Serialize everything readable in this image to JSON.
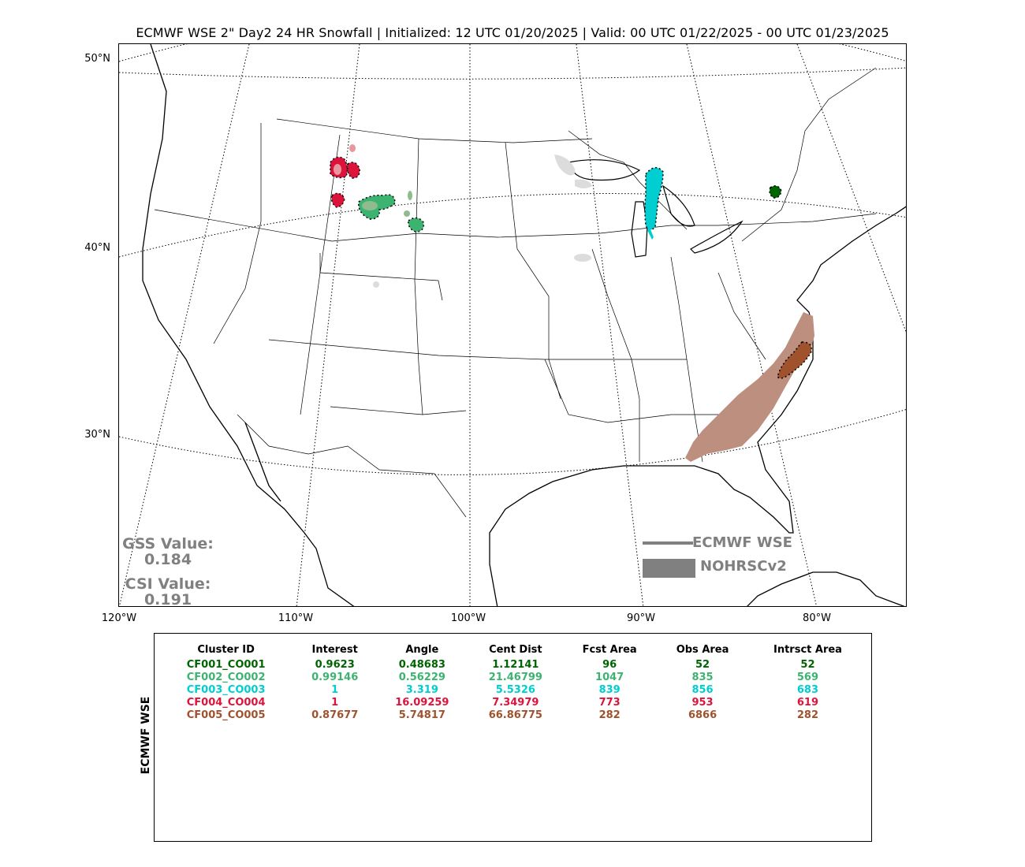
{
  "title": "ECMWF WSE 2\" Day2 24 HR Snowfall | Initialized: 12 UTC 01/20/2025 | Valid: 00 UTC 01/22/2025 - 00 UTC 01/23/2025",
  "lat_labels": [
    "50°N",
    "40°N",
    "30°N"
  ],
  "lon_labels": [
    "120°W",
    "110°W",
    "100°W",
    "90°W",
    "80°W"
  ],
  "stats": {
    "gss_label": "GSS Value:",
    "gss_value": "0.184",
    "csi_label": "CSI Value:",
    "csi_value": "0.191"
  },
  "legend": {
    "forecast_label": "ECMWF WSE",
    "observed_label": "NOHRSCv2",
    "color": "#808080"
  },
  "table": {
    "side_label": "ECMWF WSE",
    "headers": [
      "Cluster ID",
      "Interest",
      "Angle",
      "Cent Dist",
      "Fcst Area",
      "Obs Area",
      "Intrsct Area"
    ],
    "rows": [
      {
        "color": "#006400",
        "cells": [
          "CF001_CO001",
          "0.9623",
          "0.48683",
          "1.12141",
          "96",
          "52",
          "52"
        ]
      },
      {
        "color": "#3cb371",
        "cells": [
          "CF002_CO002",
          "0.99146",
          "0.56229",
          "21.46799",
          "1047",
          "835",
          "569"
        ]
      },
      {
        "color": "#00ced1",
        "cells": [
          "CF003_CO003",
          "1",
          "3.319",
          "5.5326",
          "839",
          "856",
          "683"
        ]
      },
      {
        "color": "#dc143c",
        "cells": [
          "CF004_CO004",
          "1",
          "16.09259",
          "7.34979",
          "773",
          "953",
          "619"
        ]
      },
      {
        "color": "#a0522d",
        "cells": [
          "CF005_CO005",
          "0.87677",
          "5.74817",
          "66.86775",
          "282",
          "6866",
          "282"
        ]
      }
    ]
  },
  "clusters": [
    {
      "id": "CF001_CO001",
      "color": "#006400",
      "obs_color": "#006400"
    },
    {
      "id": "CF002_CO002",
      "color": "#3cb371",
      "obs_color": "#8fbc8f"
    },
    {
      "id": "CF003_CO003",
      "color": "#00ced1",
      "obs_color": "#00ced1"
    },
    {
      "id": "CF004_CO004",
      "color": "#dc143c",
      "obs_color": "#e9969f"
    },
    {
      "id": "CF005_CO005",
      "color": "#a0522d",
      "obs_color": "#bc8f7f"
    }
  ],
  "unmatched_obs_color": "#dcdcdc"
}
